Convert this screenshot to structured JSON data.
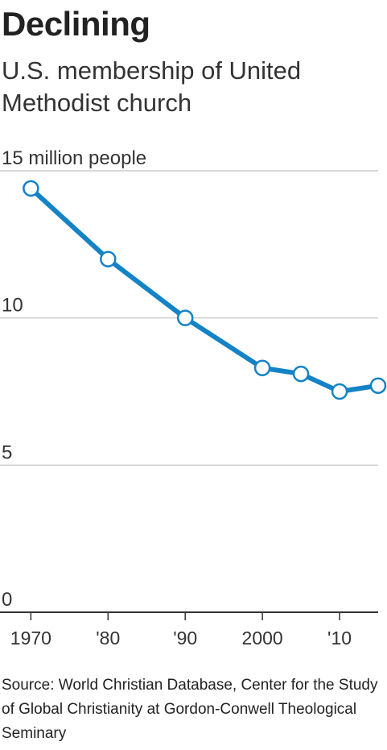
{
  "chart_data": {
    "type": "line",
    "title": "Declining",
    "subtitle": "U.S. membership of United Methodist church",
    "source": "Source: World Christian Database, Center for the Study of Global Christianity at Gordon-Conwell Theological Seminary",
    "x": [
      1970,
      1980,
      1990,
      2000,
      2005,
      2010,
      2015
    ],
    "series": [
      {
        "color": "#1483c6",
        "values": [
          14.4,
          12.0,
          10.0,
          8.3,
          8.1,
          7.5,
          7.7
        ]
      }
    ],
    "xlim": [
      1966,
      2015
    ],
    "xticks": [
      1970,
      {
        "value": 1980,
        "label": "'80"
      },
      {
        "value": 1990,
        "label": "'90"
      },
      2000,
      {
        "value": 2010,
        "label": "'10"
      }
    ],
    "ylim": [
      0,
      15
    ],
    "yticks": [
      0,
      5,
      10,
      {
        "value": 15,
        "label": "15 million people"
      }
    ],
    "grid": true
  }
}
